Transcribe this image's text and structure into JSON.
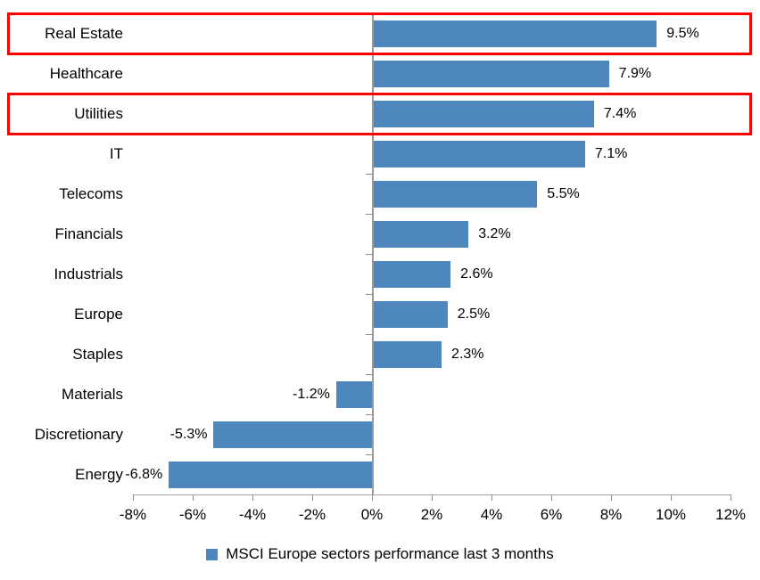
{
  "chart_data": {
    "type": "bar",
    "orientation": "horizontal",
    "title": "",
    "categories": [
      "Real Estate",
      "Healthcare",
      "Utilities",
      "IT",
      "Telecoms",
      "Financials",
      "Industrials",
      "Europe",
      "Staples",
      "Materials",
      "Discretionary",
      "Energy"
    ],
    "values": [
      9.5,
      7.9,
      7.4,
      7.1,
      5.5,
      3.2,
      2.6,
      2.5,
      2.3,
      -1.2,
      -5.3,
      -6.8
    ],
    "value_labels": [
      "9.5%",
      "7.9%",
      "7.4%",
      "7.1%",
      "5.5%",
      "3.2%",
      "2.6%",
      "2.5%",
      "2.3%",
      "-1.2%",
      "-5.3%",
      "-6.8%"
    ],
    "x_tick_labels": [
      "-8%",
      "-6%",
      "-4%",
      "-2%",
      "0%",
      "2%",
      "4%",
      "6%",
      "8%",
      "10%",
      "12%"
    ],
    "x_tick_values": [
      -8,
      -6,
      -4,
      -2,
      0,
      2,
      4,
      6,
      8,
      10,
      12
    ],
    "xlim": [
      -8,
      12
    ],
    "grid": false,
    "legend_label": "MSCI Europe sectors performance last 3 months",
    "legend_position": "bottom-center",
    "highlighted_categories": [
      "Real Estate",
      "Utilities"
    ],
    "colors": {
      "bar": "#4E86BE",
      "highlight_border": "#FF0000",
      "axis_line": "#A6A6A6",
      "tick": "#8C8C8C",
      "text": "#000000"
    }
  }
}
